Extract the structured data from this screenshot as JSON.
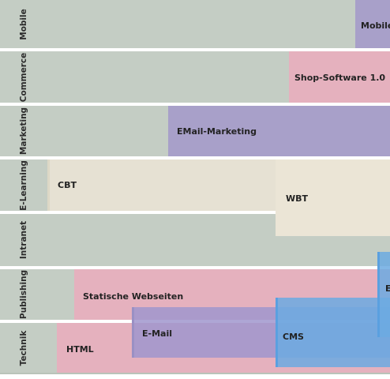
{
  "lanes": [
    {
      "label": "Mobile"
    },
    {
      "label": "Commerce"
    },
    {
      "label": "Marketing"
    },
    {
      "label": "E-Learning"
    },
    {
      "label": "Intranet"
    },
    {
      "label": "Publishing"
    },
    {
      "label": "Technik"
    }
  ],
  "bars": {
    "mobile": "Mobile-",
    "shop": "Shop-Software 1.0",
    "email_marketing": "EMail-Marketing",
    "cbt": "CBT",
    "wbt": "WBT",
    "statische": "Statische Webseiten",
    "email": "E-Mail",
    "html": "HTML",
    "cms": "CMS",
    "edge_e": "E"
  },
  "colors": {
    "lane_bg": "#c4cdc4",
    "pink": "#e5b1be",
    "purple": "#a8a0c9",
    "beige": "#e6e1d3",
    "blue": "#6caae2"
  }
}
